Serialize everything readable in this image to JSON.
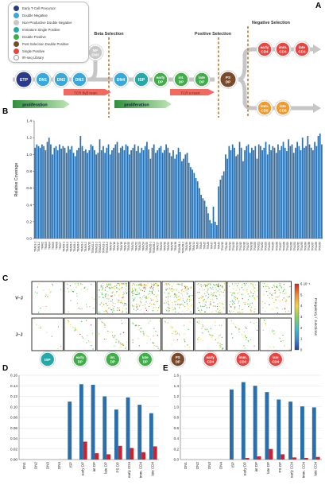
{
  "panels": {
    "A": "A",
    "B": "B",
    "C": "C",
    "D": "D",
    "E": "E"
  },
  "legend": [
    {
      "label": "Early T-Cell Precursor",
      "color": "#2b3a8c"
    },
    {
      "label": "Double Negative",
      "color": "#39a9dc"
    },
    {
      "label": "Non-Productive Double Negative",
      "color": "#c8c8c8"
    },
    {
      "label": "Immature Single Positive",
      "color": "#25a9a8"
    },
    {
      "label": "Double Positive",
      "color": "#3fae49"
    },
    {
      "label": "Post Selection Double Positive",
      "color": "#7a4b2a"
    },
    {
      "label": "Single Positive",
      "color": "#e9443f"
    },
    {
      "label": "IR-seq Library",
      "color": "#ffffff"
    }
  ],
  "selections": {
    "beta": "Beta Selection",
    "positive": "Positive Selection",
    "negative": "Negative Selection"
  },
  "stages": {
    "etp": "ETP",
    "dn1": "DN1",
    "dn2": "DN2",
    "dn3": "DN3",
    "npdn3": "NP DN3",
    "dn4": "DN4",
    "isp": "ISP",
    "earlydp": "early DP",
    "intdp": "int. DP",
    "latedp": "late DP",
    "psdp": "PS DP",
    "earlycd4": "early CD4",
    "immcd4": "imm. CD4",
    "latecd4": "late CD4",
    "immcd8": "imm. CD8",
    "latecd8": "late CD8"
  },
  "arrows": {
    "tcr_beta": "TCR δγβ rearr.",
    "tcr_alpha": "TCR α rearr.",
    "prolif1": "proliferation",
    "prolif2": "proliferation"
  },
  "colors": {
    "etp": "#2b3a8c",
    "dn": "#39a9dc",
    "np": "#c8c8c8",
    "isp": "#25a9a8",
    "dp": "#3fae49",
    "ps": "#7a4b2a",
    "sp": "#e9443f",
    "bar": "#2a6fad",
    "red": "#d0212a",
    "prolif": "#45b049",
    "rearr": "#f06a60"
  },
  "panel_c": {
    "row_labels": [
      "V–J",
      "J–J"
    ],
    "stages": [
      "ISP",
      "early DP",
      "int. DP",
      "late DP",
      "PS DP",
      "early CD4",
      "imm. CD4",
      "late CD4"
    ],
    "stage_colors": [
      "#25a9a8",
      "#3fae49",
      "#3fae49",
      "#3fae49",
      "#7a4b2a",
      "#e9443f",
      "#e9443f",
      "#e9443f"
    ],
    "colorbar_label": "Frequency / Junctions",
    "colorbar_ticks": [
      "0",
      "1",
      "2",
      "3",
      "4",
      "5",
      "6·10⁻⁴"
    ],
    "colorbar_colors": [
      "#2c3e9e",
      "#3a8fd6",
      "#44c0c0",
      "#8ad05a",
      "#f2d33b",
      "#f28a2b",
      "#d7261e"
    ],
    "vj_density": [
      0.1,
      0.2,
      0.85,
      0.85,
      0.8,
      0.85,
      0.6,
      0.45
    ],
    "jj_density": [
      0.1,
      0.25,
      0.45,
      0.45,
      0.35,
      0.5,
      0.35,
      0.2
    ]
  },
  "chart_data": [
    {
      "type": "bar",
      "panel": "B",
      "title": "",
      "ylabel": "Relative Coverage",
      "ylim": [
        0,
        1.4
      ],
      "yticks": [
        "0.0",
        "0.2",
        "0.4",
        "0.6",
        "0.8",
        "1.0",
        "1.2",
        "1.4"
      ],
      "tick_labels": [
        "TRAV1-1",
        "TRAV1-2",
        "TRAV2",
        "TRAV3",
        "TRAV4",
        "TRAV5",
        "TRAV6",
        "TRAV7",
        "TRAV8-1",
        "TRAV8-2",
        "TRAV8-3",
        "TRAV8-4",
        "TRAV8-6",
        "TRAV9-1",
        "TRAV9-2",
        "TRAV10",
        "TRAV12-1",
        "TRAV12-2",
        "TRAV12-3",
        "TRAV13-1",
        "TRAV13-2",
        "TRAV14",
        "TRAV16",
        "TRAV17",
        "TRAV18",
        "TRAV19",
        "TRAV20",
        "TRAV21",
        "TRAV22",
        "TRAV23",
        "TRAV24",
        "TRAV25",
        "TRAV26-1",
        "TRAV26-2",
        "TRAV27",
        "TRAV29",
        "TRAV30",
        "TRAV34",
        "TRAV35",
        "TRAV36",
        "TRAV38-1",
        "TRAV38-2",
        "TRAV39",
        "TRAV40",
        "TRAV41",
        "TRAJ3",
        "TRAJ4",
        "TRAJ5",
        "TRAJ6",
        "TRAJ7",
        "TRAJ8",
        "TRAJ9",
        "TRAJ10",
        "TRAJ11",
        "TRAJ12",
        "TRAJ13",
        "TRAJ14",
        "TRAJ15",
        "TRAJ16",
        "TRAJ17",
        "TRAJ18",
        "TRAJ20",
        "TRAJ21",
        "TRAJ22",
        "TRAJ23",
        "TRAJ24",
        "TRAJ25",
        "TRAJ26",
        "TRAJ27",
        "TRAJ28",
        "TRAJ29",
        "TRAJ30",
        "TRAJ31",
        "TRAJ32",
        "TRAJ33",
        "TRAJ34",
        "TRAJ36",
        "TRAJ37",
        "TRAJ38",
        "TRAJ39"
      ],
      "values": [
        1.08,
        1.12,
        1.1,
        1.08,
        1.12,
        1.1,
        1.05,
        1.15,
        1.2,
        1.12,
        1.0,
        1.08,
        1.1,
        1.05,
        1.12,
        1.07,
        1.1,
        1.08,
        1.02,
        1.1,
        1.06,
        1.1,
        1.02,
        0.98,
        1.05,
        1.08,
        1.22,
        1.1,
        1.04,
        1.06,
        1.02,
        1.05,
        1.12,
        1.1,
        1.05,
        1.0,
        1.02,
        1.18,
        1.05,
        1.1,
        1.02,
        1.08,
        1.12,
        1.0,
        1.05,
        1.08,
        1.12,
        1.15,
        1.02,
        1.08,
        1.1,
        1.05,
        1.12,
        1.1,
        1.0,
        1.05,
        1.08,
        1.12,
        1.04,
        1.1,
        1.02,
        1.08,
        1.05,
        1.1,
        1.15,
        1.06,
        0.95,
        1.08,
        1.12,
        1.02,
        1.05,
        1.08,
        1.1,
        1.02,
        1.05,
        1.12,
        1.08,
        1.02,
        0.98,
        1.05,
        0.95,
        1.0,
        1.08,
        1.03,
        0.92,
        0.95,
        1.0,
        1.02,
        0.9,
        0.85,
        0.82,
        0.78,
        0.72,
        0.68,
        0.6,
        0.52,
        0.48,
        0.45,
        0.38,
        0.3,
        0.22,
        0.18,
        0.38,
        0.2,
        0.16,
        0.62,
        0.7,
        0.75,
        0.8,
        1.0,
        0.95,
        1.1,
        1.05,
        1.12,
        1.08,
        0.98,
        1.0,
        1.15,
        1.08,
        0.92,
        1.05,
        1.1,
        1.12,
        1.02,
        1.08,
        1.05,
        1.1,
        0.95,
        1.12,
        1.1,
        1.05,
        1.08,
        1.15,
        1.0,
        1.12,
        1.05,
        1.1,
        1.08,
        1.02,
        1.12,
        1.05,
        1.1,
        1.15,
        1.08,
        1.04,
        1.18,
        1.1,
        1.12,
        1.02,
        1.08,
        1.15,
        1.1,
        1.05,
        1.2,
        1.08,
        1.1,
        1.22,
        1.12,
        1.08,
        1.05,
        1.15,
        1.1,
        1.22,
        1.25,
        1.12
      ]
    },
    {
      "type": "bar",
      "panel": "D",
      "categories": [
        "DN1",
        "DN2",
        "DN3",
        "DN4",
        "ISP",
        "early DP",
        "int DP",
        "late DP",
        "PS DP",
        "early CD4",
        "imm. CD4",
        "late CD4"
      ],
      "ylim": [
        0,
        0.16
      ],
      "yticks": [
        "0.00",
        "0.02",
        "0.04",
        "0.06",
        "0.08",
        "0.10",
        "0.12",
        "0.14",
        "0.16"
      ],
      "series": [
        {
          "color": "#2a6fad",
          "values": [
            0,
            0,
            0,
            0,
            0.11,
            0.143,
            0.142,
            0.12,
            0.095,
            0.118,
            0.104,
            0.088
          ]
        },
        {
          "color": "#d0212a",
          "values": [
            0,
            0,
            0,
            0,
            0,
            0.034,
            0.012,
            0.01,
            0.026,
            0.022,
            0.014,
            0.025
          ]
        }
      ]
    },
    {
      "type": "bar",
      "panel": "E",
      "categories": [
        "DN1",
        "DN2",
        "DN3",
        "DN4",
        "ISP",
        "early DP",
        "int DP",
        "late DP",
        "PS DP",
        "early CD4",
        "imm. CD4",
        "late CD4"
      ],
      "ylim": [
        0,
        1.6
      ],
      "yticks": [
        "0.0",
        "0.2",
        "0.4",
        "0.6",
        "0.8",
        "1.0",
        "1.2",
        "1.4",
        "1.6"
      ],
      "series": [
        {
          "color": "#2a6fad",
          "values": [
            0,
            0,
            0,
            0,
            1.33,
            1.47,
            1.4,
            1.28,
            1.14,
            1.1,
            1.01,
            0.99
          ]
        },
        {
          "color": "#d0212a",
          "values": [
            0,
            0,
            0,
            0,
            0,
            0.03,
            0.06,
            0.2,
            0.1,
            0.04,
            0.03,
            0.05
          ]
        }
      ]
    }
  ]
}
